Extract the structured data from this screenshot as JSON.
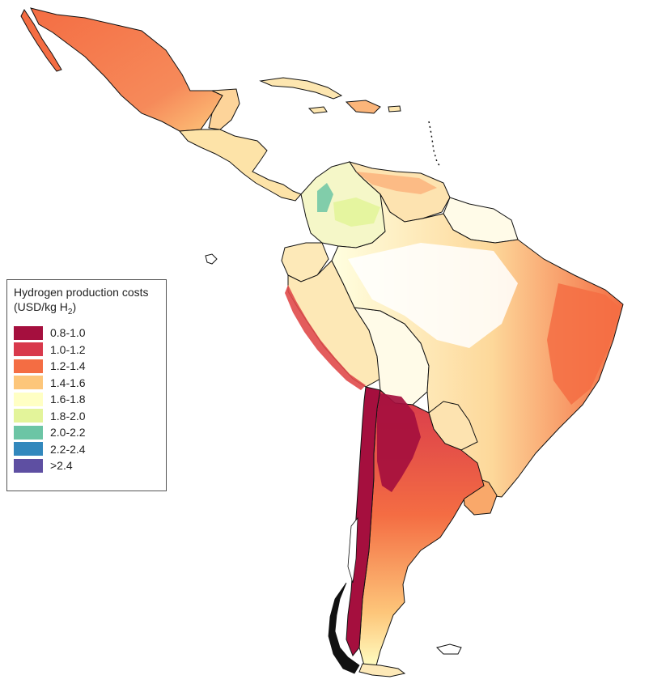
{
  "legend": {
    "title_line1": "Hydrogen production costs",
    "title_line2_prefix": "(USD/kg H",
    "title_line2_sub": "2",
    "title_line2_suffix": ")",
    "items": [
      {
        "label": "0.8-1.0",
        "color": "#a50f3e"
      },
      {
        "label": "1.0-1.2",
        "color": "#d8394c"
      },
      {
        "label": "1.2-1.4",
        "color": "#f46d43"
      },
      {
        "label": "1.4-1.6",
        "color": "#fdc67a"
      },
      {
        "label": "1.6-1.8",
        "color": "#ffffc4"
      },
      {
        "label": "1.8-2.0",
        "color": "#e3f49a"
      },
      {
        "label": "2.0-2.2",
        "color": "#6cc5a5"
      },
      {
        "label": "2.2-2.4",
        "color": "#3288bd"
      },
      {
        "label": ">2.4",
        "color": "#5e4fa2"
      }
    ]
  },
  "map": {
    "outline_color": "#111111",
    "background_color": "#ffffff"
  }
}
